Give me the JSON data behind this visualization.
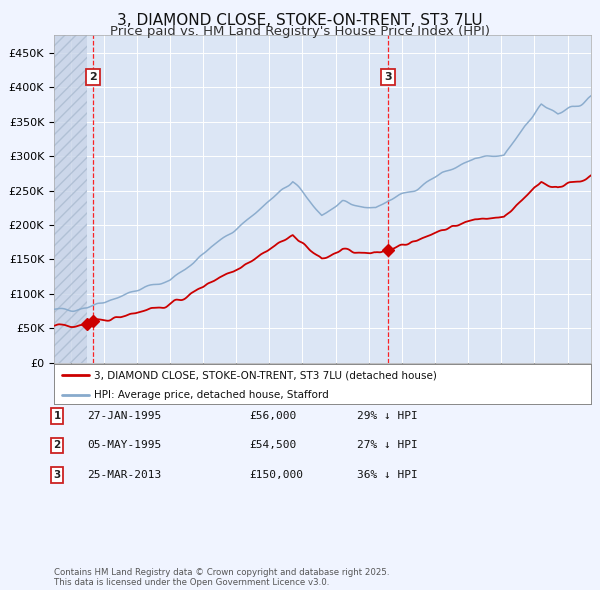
{
  "title": "3, DIAMOND CLOSE, STOKE-ON-TRENT, ST3 7LU",
  "subtitle": "Price paid vs. HM Land Registry's House Price Index (HPI)",
  "title_fontsize": 11,
  "subtitle_fontsize": 9.5,
  "background_color": "#f0f4ff",
  "plot_bg_color": "#dce6f5",
  "grid_color": "#ffffff",
  "red_color": "#cc0000",
  "blue_color": "#88aacc",
  "sale1_year": 1995,
  "sale1_month": 1,
  "sale1_price": 56000,
  "sale2_year": 1995,
  "sale2_month": 5,
  "sale2_price": 54500,
  "sale3_year": 2013,
  "sale3_month": 3,
  "sale3_price": 150000,
  "legend_label_red": "3, DIAMOND CLOSE, STOKE-ON-TRENT, ST3 7LU (detached house)",
  "legend_label_blue": "HPI: Average price, detached house, Stafford",
  "ylim_max": 475000,
  "ylim_min": 0,
  "copyright_text": "Contains HM Land Registry data © Crown copyright and database right 2025.\nThis data is licensed under the Open Government Licence v3.0."
}
